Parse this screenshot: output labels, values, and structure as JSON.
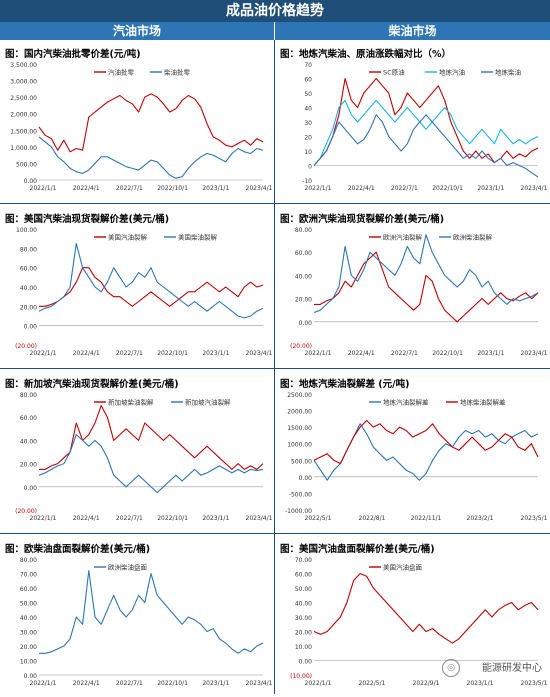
{
  "banner": {
    "title": "成品油价格趋势"
  },
  "columns": {
    "left": "汽油市场",
    "right": "柴油市场"
  },
  "watermark": {
    "text": "能源研发中心"
  },
  "colors": {
    "header_dark": "#1f4e79",
    "header_blue": "#2e75b6",
    "red": "#c00000",
    "blue": "#2e75b6",
    "light_blue": "#1ab2e6",
    "neg_label": "#c00000"
  },
  "chart_data": [
    {
      "id": "p1",
      "type": "line",
      "title": "图：国内汽柴油批零价差(元/吨)",
      "ylim": [
        0,
        3500
      ],
      "yticks": [
        "0.00",
        "500.00",
        "1,000.00",
        "1,500.00",
        "2,000.00",
        "2,500.00",
        "3,000.00",
        "3,500.00"
      ],
      "xticks": [
        "2022/1/1",
        "2022/4/1",
        "2022/7/1",
        "2022/10/1",
        "2023/1/1",
        "2023/4/1"
      ],
      "series": [
        {
          "name": "汽油批零",
          "color": "#c00000",
          "values": [
            1600,
            1350,
            1250,
            900,
            1200,
            850,
            950,
            900,
            1900,
            2050,
            2200,
            2350,
            2450,
            2550,
            2400,
            2300,
            2050,
            2500,
            2600,
            2500,
            2300,
            2050,
            2150,
            2400,
            2550,
            2450,
            2200,
            1700,
            1300,
            1200,
            1050,
            1000,
            1100,
            1200,
            1050,
            1250,
            1150
          ]
        },
        {
          "name": "柴油批零",
          "color": "#2e75b6",
          "values": [
            1300,
            1150,
            1000,
            700,
            550,
            350,
            250,
            200,
            300,
            500,
            700,
            700,
            600,
            500,
            400,
            350,
            300,
            450,
            600,
            550,
            350,
            150,
            50,
            100,
            350,
            550,
            700,
            800,
            750,
            650,
            550,
            800,
            950,
            850,
            800,
            950,
            900
          ]
        }
      ]
    },
    {
      "id": "p2",
      "type": "line",
      "title": "图：地炼汽柴油、原油涨跌幅对比（%）",
      "ylim": [
        -10,
        70
      ],
      "yticks": [
        "-10",
        "0",
        "10",
        "20",
        "30",
        "40",
        "50",
        "60",
        "70"
      ],
      "xticks": [
        "2022/1/1",
        "2022/4/1",
        "2022/7/1",
        "2022/10/1",
        "2023/1/1",
        "2023/4/1"
      ],
      "series": [
        {
          "name": "SC原油",
          "color": "#c00000",
          "values": [
            0,
            5,
            10,
            20,
            35,
            60,
            45,
            40,
            50,
            55,
            60,
            55,
            50,
            35,
            40,
            50,
            45,
            40,
            45,
            50,
            55,
            45,
            30,
            20,
            10,
            5,
            10,
            5,
            8,
            2,
            5,
            10,
            5,
            8,
            6,
            10,
            12
          ]
        },
        {
          "name": "地炼汽油",
          "color": "#1ab2e6",
          "values": [
            0,
            5,
            15,
            25,
            40,
            45,
            35,
            30,
            35,
            40,
            45,
            40,
            35,
            30,
            35,
            40,
            35,
            30,
            25,
            30,
            35,
            40,
            35,
            25,
            20,
            15,
            20,
            25,
            20,
            15,
            25,
            20,
            15,
            18,
            15,
            18,
            20
          ]
        },
        {
          "name": "地炼柴油",
          "color": "#2e75b6",
          "values": [
            0,
            5,
            10,
            20,
            30,
            25,
            20,
            15,
            18,
            25,
            35,
            30,
            20,
            15,
            10,
            15,
            25,
            30,
            35,
            30,
            25,
            20,
            15,
            10,
            5,
            8,
            5,
            10,
            5,
            2,
            5,
            0,
            2,
            0,
            -2,
            -5,
            -8
          ]
        }
      ]
    },
    {
      "id": "p3",
      "type": "line",
      "title": "图：美国汽柴油现货裂解价差(美元/桶)",
      "ylim": [
        -20,
        100
      ],
      "yticks": [
        "(20.00)",
        "0.00",
        "20.00",
        "40.00",
        "60.00",
        "80.00",
        "100.00"
      ],
      "xticks": [
        "2022/1/1",
        "2022/4/1",
        "2022/7/1",
        "2022/10/1",
        "2023/1/1",
        "2023/4/1"
      ],
      "series": [
        {
          "name": "美国汽油裂解",
          "color": "#c00000",
          "values": [
            20,
            20,
            22,
            25,
            30,
            35,
            45,
            60,
            60,
            50,
            45,
            35,
            30,
            30,
            25,
            20,
            25,
            30,
            35,
            30,
            25,
            20,
            25,
            30,
            35,
            35,
            40,
            45,
            40,
            35,
            40,
            35,
            30,
            40,
            45,
            40,
            42
          ]
        },
        {
          "name": "美国柴油裂解",
          "color": "#2e75b6",
          "values": [
            15,
            18,
            20,
            25,
            30,
            40,
            85,
            60,
            50,
            40,
            35,
            45,
            60,
            50,
            40,
            45,
            55,
            50,
            60,
            45,
            40,
            35,
            30,
            25,
            20,
            25,
            20,
            15,
            20,
            25,
            20,
            15,
            10,
            8,
            10,
            15,
            18
          ]
        }
      ]
    },
    {
      "id": "p4",
      "type": "line",
      "title": "图：欧洲汽柴油现货裂解价差(美元/桶)",
      "ylim": [
        -20,
        80
      ],
      "yticks": [
        "(20.00)",
        "0.00",
        "20.00",
        "40.00",
        "60.00",
        "80.00"
      ],
      "xticks": [
        "2022/1/1",
        "2022/4/1",
        "2022/7/1",
        "2022/10/1",
        "2023/1/1",
        "2023/4/1"
      ],
      "series": [
        {
          "name": "欧洲汽油裂解",
          "color": "#c00000",
          "values": [
            15,
            15,
            18,
            20,
            25,
            35,
            30,
            40,
            50,
            55,
            60,
            45,
            30,
            25,
            20,
            15,
            10,
            15,
            40,
            35,
            20,
            10,
            5,
            0,
            5,
            10,
            15,
            20,
            15,
            20,
            25,
            20,
            18,
            22,
            25,
            20,
            25
          ]
        },
        {
          "name": "欧洲柴油裂解",
          "color": "#2e75b6",
          "values": [
            8,
            10,
            15,
            20,
            30,
            65,
            40,
            35,
            45,
            60,
            55,
            50,
            45,
            40,
            50,
            65,
            55,
            50,
            75,
            60,
            50,
            40,
            35,
            30,
            35,
            45,
            40,
            30,
            35,
            25,
            20,
            15,
            20,
            18,
            20,
            22,
            25
          ]
        }
      ]
    },
    {
      "id": "p5",
      "type": "line",
      "title": "图：新加坡汽柴油现货裂解价差(美元/桶)",
      "ylim": [
        -20,
        80
      ],
      "yticks": [
        "(20.00)",
        "0.00",
        "20.00",
        "40.00",
        "60.00",
        "80.00"
      ],
      "xticks": [
        "2022/1/1",
        "2022/4/1",
        "2022/7/1",
        "2022/10/1",
        "2023/1/1",
        "2023/4/1"
      ],
      "series": [
        {
          "name": "新加坡柴油裂解",
          "color": "#c00000",
          "values": [
            15,
            15,
            18,
            20,
            25,
            30,
            55,
            40,
            45,
            55,
            70,
            60,
            40,
            45,
            50,
            45,
            40,
            55,
            50,
            45,
            40,
            45,
            40,
            35,
            30,
            25,
            30,
            35,
            30,
            25,
            20,
            15,
            20,
            15,
            18,
            15,
            20
          ]
        },
        {
          "name": "新加坡汽油裂解",
          "color": "#2e75b6",
          "values": [
            10,
            12,
            15,
            18,
            20,
            30,
            45,
            40,
            35,
            40,
            35,
            25,
            10,
            5,
            0,
            5,
            10,
            5,
            0,
            -5,
            0,
            5,
            10,
            5,
            10,
            15,
            10,
            12,
            15,
            18,
            15,
            12,
            15,
            12,
            15,
            14,
            15
          ]
        }
      ]
    },
    {
      "id": "p6",
      "type": "line",
      "title": "图：地炼汽柴油裂解差 (元/吨)",
      "ylim": [
        -1000,
        2500
      ],
      "yticks": [
        "-1000.00",
        "-500.00",
        "0.00",
        "500.00",
        "1000.00",
        "1500.00",
        "2000.00",
        "2500.00"
      ],
      "xticks": [
        "2022/5/1",
        "2022/8/1",
        "2022/11/1",
        "2023/2/1",
        "2023/5/1"
      ],
      "series": [
        {
          "name": "地炼汽油裂解差",
          "color": "#2e75b6",
          "values": [
            500,
            200,
            -100,
            200,
            400,
            800,
            1200,
            1600,
            1300,
            900,
            700,
            500,
            600,
            400,
            200,
            100,
            -100,
            100,
            500,
            800,
            1000,
            900,
            1200,
            1400,
            1300,
            1400,
            1200,
            1300,
            1100,
            1000,
            1200,
            1300,
            1400,
            1200,
            1300
          ]
        },
        {
          "name": "地炼柴油裂解差",
          "color": "#c00000",
          "values": [
            500,
            600,
            700,
            500,
            400,
            800,
            1200,
            1500,
            1700,
            1500,
            1600,
            1400,
            1300,
            1500,
            1400,
            1200,
            1300,
            1400,
            1600,
            1300,
            1100,
            900,
            800,
            1000,
            1200,
            1000,
            800,
            900,
            1100,
            1300,
            1200,
            900,
            800,
            1000,
            600
          ]
        }
      ]
    },
    {
      "id": "p7",
      "type": "line",
      "title": "图：欧柴油盘面裂解价差(美元/桶)",
      "ylim": [
        0,
        80
      ],
      "yticks": [
        "0.00",
        "10.00",
        "20.00",
        "30.00",
        "40.00",
        "50.00",
        "60.00",
        "70.00",
        "80.00"
      ],
      "xticks": [
        "2022/1/1",
        "2022/4/1",
        "2022/7/1",
        "2022/10/1",
        "2023/1/1",
        "2023/4/1"
      ],
      "series": [
        {
          "name": "欧洲柴油盘面",
          "color": "#2e75b6",
          "values": [
            15,
            15,
            16,
            18,
            20,
            25,
            40,
            35,
            72,
            40,
            35,
            45,
            55,
            45,
            40,
            45,
            55,
            50,
            70,
            55,
            50,
            45,
            40,
            35,
            40,
            38,
            35,
            30,
            32,
            25,
            22,
            18,
            15,
            18,
            16,
            20,
            22
          ]
        }
      ]
    },
    {
      "id": "p8",
      "type": "line",
      "title": "图：美国汽油盘面裂解价差(美元/桶)",
      "ylim": [
        -10,
        70
      ],
      "yticks": [
        "(10.00)",
        "0.00",
        "10.00",
        "20.00",
        "30.00",
        "40.00",
        "50.00",
        "60.00",
        "70.00"
      ],
      "xticks": [
        "2022/1/1",
        "2022/5/1",
        "2022/9/1",
        "2023/1/1",
        "2023/5/1"
      ],
      "series": [
        {
          "name": "美国汽油盘面",
          "color": "#c00000",
          "values": [
            20,
            18,
            20,
            25,
            30,
            40,
            55,
            60,
            58,
            50,
            45,
            40,
            35,
            30,
            25,
            20,
            25,
            20,
            22,
            18,
            15,
            12,
            15,
            20,
            25,
            30,
            35,
            30,
            35,
            38,
            40,
            35,
            38,
            40,
            35
          ]
        }
      ]
    }
  ]
}
